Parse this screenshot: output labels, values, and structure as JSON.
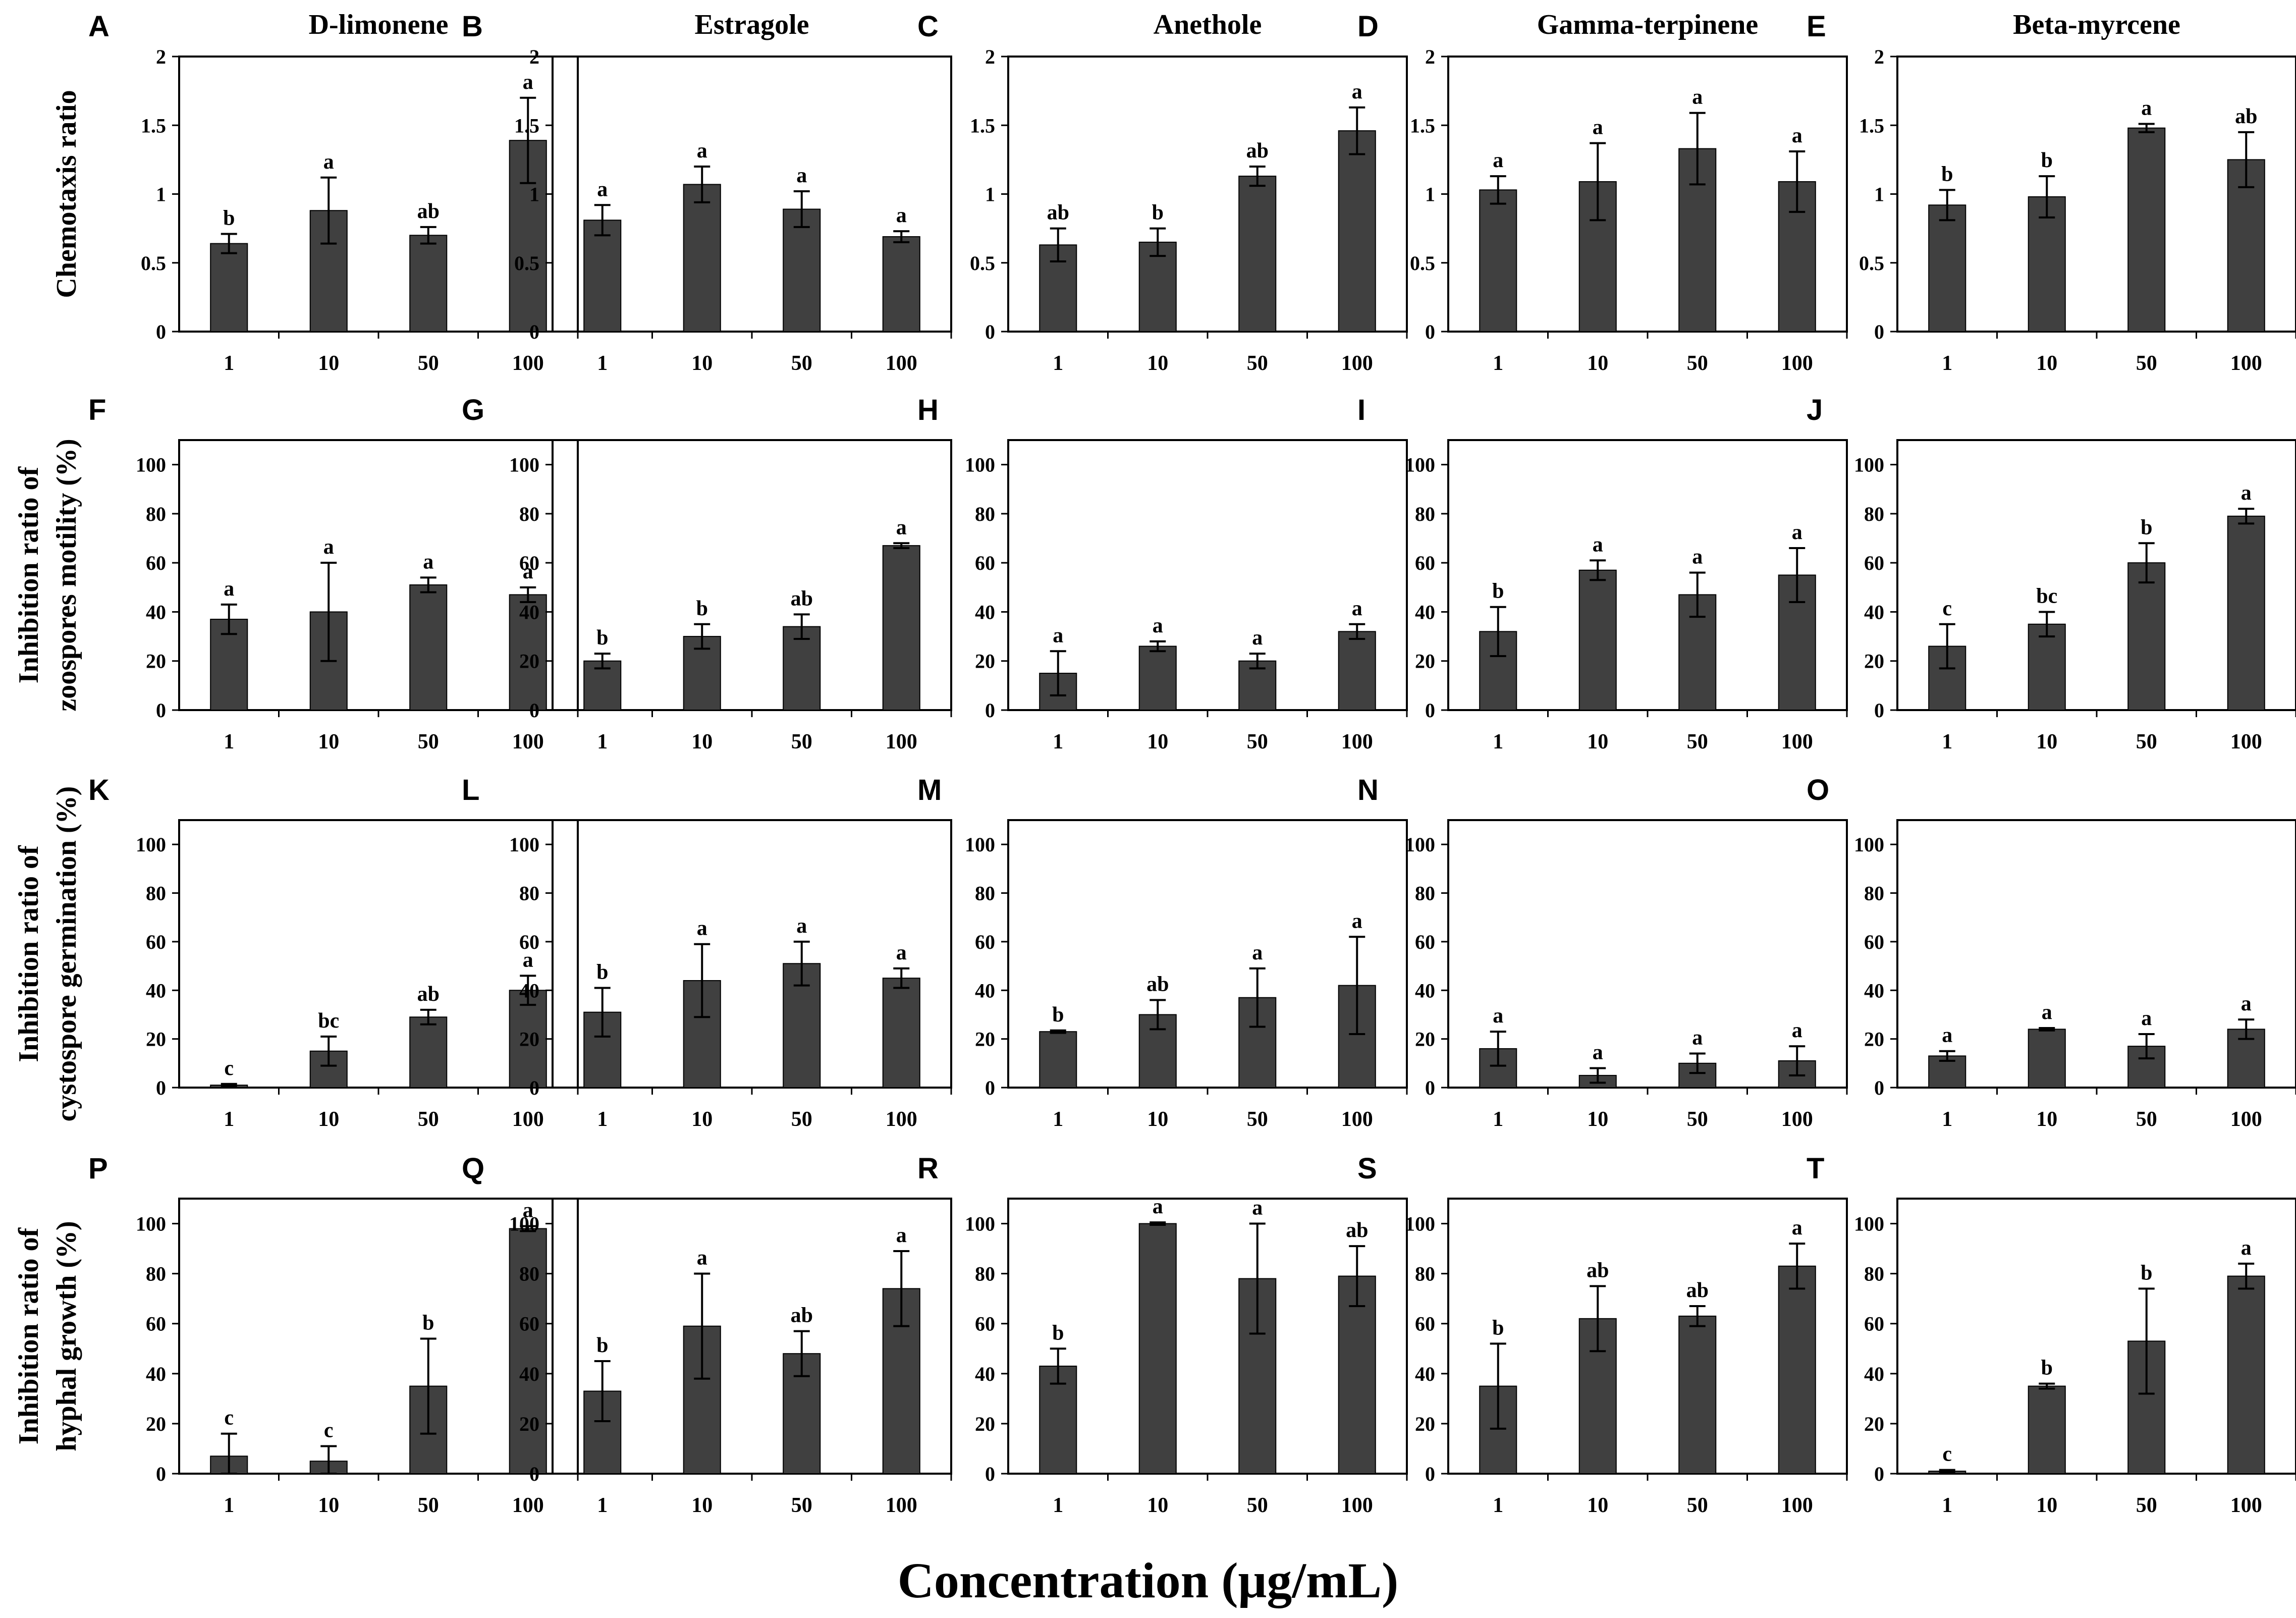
{
  "figure": {
    "xlabel": "Concentration (μg/mL)",
    "bar_color": "#404040"
  },
  "row_ylabels": [
    [
      "Chemotaxis ratio"
    ],
    [
      "Inhibition ratio of",
      "zoospores motility (%)"
    ],
    [
      "Inhibition ratio of",
      "cystospore germination (%)"
    ],
    [
      "Inhibition ratio of",
      "hyphal growth (%)"
    ]
  ],
  "chart_data": [
    {
      "panel": "A",
      "type": "bar",
      "row": 0,
      "col": 0,
      "title": "D-limonene",
      "categories": [
        "1",
        "10",
        "50",
        "100"
      ],
      "values": [
        0.64,
        0.88,
        0.7,
        1.39
      ],
      "errors": [
        0.07,
        0.24,
        0.06,
        0.31
      ],
      "letters": [
        "b",
        "a",
        "ab",
        "a"
      ],
      "ylim": [
        0,
        2
      ],
      "yticks": [
        "0",
        "0.5",
        "1",
        "1.5",
        "2"
      ]
    },
    {
      "panel": "B",
      "type": "bar",
      "row": 0,
      "col": 1,
      "title": "Estragole",
      "categories": [
        "1",
        "10",
        "50",
        "100"
      ],
      "values": [
        0.81,
        1.07,
        0.89,
        0.69
      ],
      "errors": [
        0.11,
        0.13,
        0.13,
        0.04
      ],
      "letters": [
        "a",
        "a",
        "a",
        "a"
      ],
      "ylim": [
        0,
        2
      ],
      "yticks": [
        "0",
        "0.5",
        "1",
        "1.5",
        "2"
      ]
    },
    {
      "panel": "C",
      "type": "bar",
      "row": 0,
      "col": 2,
      "title": "Anethole",
      "categories": [
        "1",
        "10",
        "50",
        "100"
      ],
      "values": [
        0.63,
        0.65,
        1.13,
        1.46
      ],
      "errors": [
        0.12,
        0.1,
        0.07,
        0.17
      ],
      "letters": [
        "ab",
        "b",
        "ab",
        "a"
      ],
      "ylim": [
        0,
        2
      ],
      "yticks": [
        "0",
        "0.5",
        "1",
        "1.5",
        "2"
      ]
    },
    {
      "panel": "D",
      "type": "bar",
      "row": 0,
      "col": 3,
      "title": "Gamma-terpinene",
      "categories": [
        "1",
        "10",
        "50",
        "100"
      ],
      "values": [
        1.03,
        1.09,
        1.33,
        1.09
      ],
      "errors": [
        0.1,
        0.28,
        0.26,
        0.22
      ],
      "letters": [
        "a",
        "a",
        "a",
        "a"
      ],
      "ylim": [
        0,
        2
      ],
      "yticks": [
        "0",
        "0.5",
        "1",
        "1.5",
        "2"
      ]
    },
    {
      "panel": "E",
      "type": "bar",
      "row": 0,
      "col": 4,
      "title": "Beta-myrcene",
      "categories": [
        "1",
        "10",
        "50",
        "100"
      ],
      "values": [
        0.92,
        0.98,
        1.48,
        1.25
      ],
      "errors": [
        0.11,
        0.15,
        0.03,
        0.2
      ],
      "letters": [
        "b",
        "b",
        "a",
        "ab"
      ],
      "ylim": [
        0,
        2
      ],
      "yticks": [
        "0",
        "0.5",
        "1",
        "1.5",
        "2"
      ]
    },
    {
      "panel": "F",
      "type": "bar",
      "row": 1,
      "col": 0,
      "title": "",
      "categories": [
        "1",
        "10",
        "50",
        "100"
      ],
      "values": [
        37,
        40,
        51,
        47
      ],
      "errors": [
        6,
        20,
        3,
        3
      ],
      "letters": [
        "a",
        "a",
        "a",
        "a"
      ],
      "ylim": [
        0,
        110
      ],
      "yticks": [
        "0",
        "20",
        "40",
        "60",
        "80",
        "100"
      ]
    },
    {
      "panel": "G",
      "type": "bar",
      "row": 1,
      "col": 1,
      "title": "",
      "categories": [
        "1",
        "10",
        "50",
        "100"
      ],
      "values": [
        20,
        30,
        34,
        67
      ],
      "errors": [
        3,
        5,
        5,
        1
      ],
      "letters": [
        "b",
        "b",
        "ab",
        "a"
      ],
      "ylim": [
        0,
        110
      ],
      "yticks": [
        "0",
        "20",
        "40",
        "60",
        "80",
        "100"
      ]
    },
    {
      "panel": "H",
      "type": "bar",
      "row": 1,
      "col": 2,
      "title": "",
      "categories": [
        "1",
        "10",
        "50",
        "100"
      ],
      "values": [
        15,
        26,
        20,
        32
      ],
      "errors": [
        9,
        2,
        3,
        3
      ],
      "letters": [
        "a",
        "a",
        "a",
        "a"
      ],
      "ylim": [
        0,
        110
      ],
      "yticks": [
        "0",
        "20",
        "40",
        "60",
        "80",
        "100"
      ]
    },
    {
      "panel": "I",
      "type": "bar",
      "row": 1,
      "col": 3,
      "title": "",
      "categories": [
        "1",
        "10",
        "50",
        "100"
      ],
      "values": [
        32,
        57,
        47,
        55
      ],
      "errors": [
        10,
        4,
        9,
        11
      ],
      "letters": [
        "b",
        "a",
        "a",
        "a"
      ],
      "ylim": [
        0,
        110
      ],
      "yticks": [
        "0",
        "20",
        "40",
        "60",
        "80",
        "100"
      ]
    },
    {
      "panel": "J",
      "type": "bar",
      "row": 1,
      "col": 4,
      "title": "",
      "categories": [
        "1",
        "10",
        "50",
        "100"
      ],
      "values": [
        26,
        35,
        60,
        79
      ],
      "errors": [
        9,
        5,
        8,
        3
      ],
      "letters": [
        "c",
        "bc",
        "b",
        "a"
      ],
      "ylim": [
        0,
        110
      ],
      "yticks": [
        "0",
        "20",
        "40",
        "60",
        "80",
        "100"
      ]
    },
    {
      "panel": "K",
      "type": "bar",
      "row": 2,
      "col": 0,
      "title": "",
      "categories": [
        "1",
        "10",
        "50",
        "100"
      ],
      "values": [
        1,
        15,
        29,
        40
      ],
      "errors": [
        0.5,
        6,
        3,
        6
      ],
      "letters": [
        "c",
        "bc",
        "ab",
        "a"
      ],
      "ylim": [
        0,
        110
      ],
      "yticks": [
        "0",
        "20",
        "40",
        "60",
        "80",
        "100"
      ]
    },
    {
      "panel": "L",
      "type": "bar",
      "row": 2,
      "col": 1,
      "title": "",
      "categories": [
        "1",
        "10",
        "50",
        "100"
      ],
      "values": [
        31,
        44,
        51,
        45
      ],
      "errors": [
        10,
        15,
        9,
        4
      ],
      "letters": [
        "b",
        "a",
        "a",
        "a"
      ],
      "ylim": [
        0,
        110
      ],
      "yticks": [
        "0",
        "20",
        "40",
        "60",
        "80",
        "100"
      ]
    },
    {
      "panel": "M",
      "type": "bar",
      "row": 2,
      "col": 2,
      "title": "",
      "categories": [
        "1",
        "10",
        "50",
        "100"
      ],
      "values": [
        23,
        30,
        37,
        42
      ],
      "errors": [
        0.5,
        6,
        12,
        20
      ],
      "letters": [
        "b",
        "ab",
        "a",
        "a"
      ],
      "ylim": [
        0,
        110
      ],
      "yticks": [
        "0",
        "20",
        "40",
        "60",
        "80",
        "100"
      ]
    },
    {
      "panel": "N",
      "type": "bar",
      "row": 2,
      "col": 3,
      "title": "",
      "categories": [
        "1",
        "10",
        "50",
        "100"
      ],
      "values": [
        16,
        5,
        10,
        11
      ],
      "errors": [
        7,
        3,
        4,
        6
      ],
      "letters": [
        "a",
        "a",
        "a",
        "a"
      ],
      "ylim": [
        0,
        110
      ],
      "yticks": [
        "0",
        "20",
        "40",
        "60",
        "80",
        "100"
      ]
    },
    {
      "panel": "O",
      "type": "bar",
      "row": 2,
      "col": 4,
      "title": "",
      "categories": [
        "1",
        "10",
        "50",
        "100"
      ],
      "values": [
        13,
        24,
        17,
        24
      ],
      "errors": [
        2,
        0.5,
        5,
        4
      ],
      "letters": [
        "a",
        "a",
        "a",
        "a"
      ],
      "ylim": [
        0,
        110
      ],
      "yticks": [
        "0",
        "20",
        "40",
        "60",
        "80",
        "100"
      ]
    },
    {
      "panel": "P",
      "type": "bar",
      "row": 3,
      "col": 0,
      "title": "",
      "categories": [
        "1",
        "10",
        "50",
        "100"
      ],
      "values": [
        7,
        5,
        35,
        98
      ],
      "errors": [
        9,
        6,
        19,
        1
      ],
      "letters": [
        "c",
        "c",
        "b",
        "a"
      ],
      "ylim": [
        0,
        110
      ],
      "yticks": [
        "0",
        "20",
        "40",
        "60",
        "80",
        "100"
      ]
    },
    {
      "panel": "Q",
      "type": "bar",
      "row": 3,
      "col": 1,
      "title": "",
      "categories": [
        "1",
        "10",
        "50",
        "100"
      ],
      "values": [
        33,
        59,
        48,
        74
      ],
      "errors": [
        12,
        21,
        9,
        15
      ],
      "letters": [
        "b",
        "a",
        "ab",
        "a"
      ],
      "ylim": [
        0,
        110
      ],
      "yticks": [
        "0",
        "20",
        "40",
        "60",
        "80",
        "100"
      ]
    },
    {
      "panel": "R",
      "type": "bar",
      "row": 3,
      "col": 2,
      "title": "",
      "categories": [
        "1",
        "10",
        "50",
        "100"
      ],
      "values": [
        43,
        100,
        78,
        79
      ],
      "errors": [
        7,
        0.5,
        22,
        12
      ],
      "letters": [
        "b",
        "a",
        "a",
        "ab"
      ],
      "ylim": [
        0,
        110
      ],
      "yticks": [
        "0",
        "20",
        "40",
        "60",
        "80",
        "100"
      ]
    },
    {
      "panel": "S",
      "type": "bar",
      "row": 3,
      "col": 3,
      "title": "",
      "categories": [
        "1",
        "10",
        "50",
        "100"
      ],
      "values": [
        35,
        62,
        63,
        83
      ],
      "errors": [
        17,
        13,
        4,
        9
      ],
      "letters": [
        "b",
        "ab",
        "ab",
        "a"
      ],
      "ylim": [
        0,
        110
      ],
      "yticks": [
        "0",
        "20",
        "40",
        "60",
        "80",
        "100"
      ]
    },
    {
      "panel": "T",
      "type": "bar",
      "row": 3,
      "col": 4,
      "title": "",
      "categories": [
        "1",
        "10",
        "50",
        "100"
      ],
      "values": [
        1,
        35,
        53,
        79
      ],
      "errors": [
        0.5,
        1,
        21,
        5
      ],
      "letters": [
        "c",
        "b",
        "b",
        "a"
      ],
      "ylim": [
        0,
        110
      ],
      "yticks": [
        "0",
        "20",
        "40",
        "60",
        "80",
        "100"
      ]
    }
  ]
}
